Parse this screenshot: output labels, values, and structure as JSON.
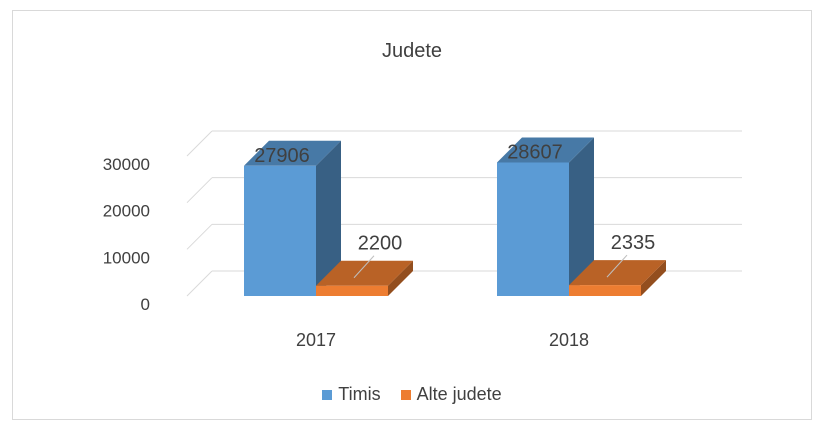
{
  "chart_data": {
    "type": "bar",
    "title": "Judete",
    "categories": [
      "2017",
      "2018"
    ],
    "series": [
      {
        "name": "Timis",
        "values": [
          27906,
          28607
        ],
        "color": "#5b9bd5"
      },
      {
        "name": "Alte judete",
        "values": [
          2200,
          2335
        ],
        "color": "#ed7d31"
      }
    ],
    "ylim": [
      0,
      30000
    ],
    "yticks": [
      0,
      10000,
      20000,
      30000
    ],
    "grid": true,
    "legend": "bottom",
    "three_d": true
  }
}
